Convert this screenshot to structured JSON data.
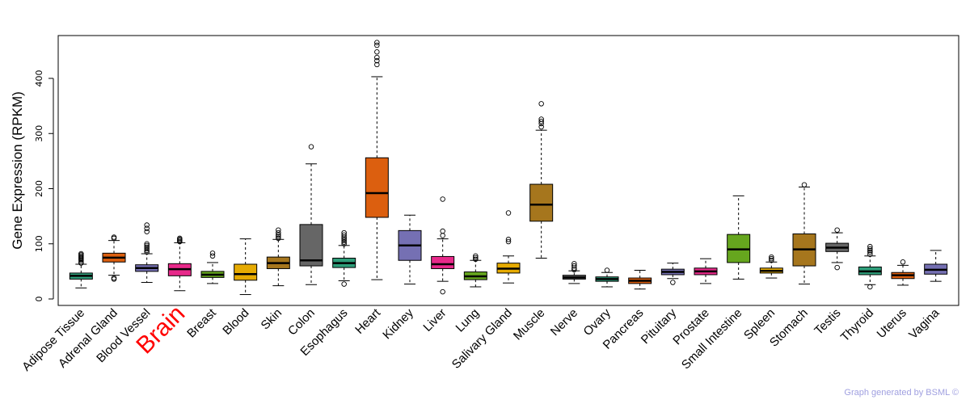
{
  "chart_data": {
    "type": "boxplot",
    "title": "",
    "xlabel": "",
    "ylabel": "Gene Expression (RPKM)",
    "ylim": [
      0,
      465
    ],
    "yticks": [
      0,
      100,
      200,
      300,
      400
    ],
    "highlight": "Brain",
    "footer": "Graph generated by BSML ©",
    "categories": [
      {
        "name": "Adipose Tissue",
        "color": "#2e9e7a",
        "whisker_low": 20,
        "q1": 36,
        "median": 42,
        "q3": 47,
        "whisker_high": 63,
        "outliers": [
          65,
          67,
          70,
          72,
          74,
          76,
          78,
          80,
          82
        ]
      },
      {
        "name": "Adrenal Gland",
        "color": "#dc5f0f",
        "whisker_low": 43,
        "q1": 67,
        "median": 75,
        "q3": 83,
        "whisker_high": 106,
        "outliers": [
          36,
          38,
          110,
          112
        ]
      },
      {
        "name": "Blood Vessel",
        "color": "#7570b3",
        "whisker_low": 30,
        "q1": 50,
        "median": 56,
        "q3": 62,
        "whisker_high": 82,
        "outliers": [
          85,
          88,
          91,
          94,
          97,
          100,
          122,
          128,
          134
        ]
      },
      {
        "name": "Brain",
        "color": "#e7298a",
        "whisker_low": 15,
        "q1": 42,
        "median": 54,
        "q3": 64,
        "whisker_high": 102,
        "outliers": [
          104,
          106,
          108,
          110
        ]
      },
      {
        "name": "Breast",
        "color": "#66a61e",
        "whisker_low": 28,
        "q1": 39,
        "median": 44,
        "q3": 50,
        "whisker_high": 66,
        "outliers": [
          78,
          83
        ]
      },
      {
        "name": "Blood",
        "color": "#e6ab02",
        "whisker_low": 8,
        "q1": 34,
        "median": 45,
        "q3": 63,
        "whisker_high": 109,
        "outliers": []
      },
      {
        "name": "Skin",
        "color": "#a6761d",
        "whisker_low": 24,
        "q1": 55,
        "median": 65,
        "q3": 76,
        "whisker_high": 108,
        "outliers": [
          110,
          113,
          116,
          120,
          125
        ]
      },
      {
        "name": "Colon",
        "color": "#666666",
        "whisker_low": 26,
        "q1": 60,
        "median": 70,
        "q3": 135,
        "whisker_high": 245,
        "outliers": [
          276
        ]
      },
      {
        "name": "Esophagus",
        "color": "#2e9e7a",
        "whisker_low": 33,
        "q1": 57,
        "median": 65,
        "q3": 74,
        "whisker_high": 97,
        "outliers": [
          27,
          100,
          103,
          106,
          109,
          112,
          116,
          120
        ]
      },
      {
        "name": "Heart",
        "color": "#dc5f0f",
        "whisker_low": 35,
        "q1": 148,
        "median": 192,
        "q3": 256,
        "whisker_high": 403,
        "outliers": [
          425,
          432,
          438,
          448,
          460,
          465
        ]
      },
      {
        "name": "Kidney",
        "color": "#7570b3",
        "whisker_low": 27,
        "q1": 70,
        "median": 97,
        "q3": 124,
        "whisker_high": 152,
        "outliers": []
      },
      {
        "name": "Liver",
        "color": "#e7298a",
        "whisker_low": 32,
        "q1": 55,
        "median": 63,
        "q3": 77,
        "whisker_high": 109,
        "outliers": [
          13,
          115,
          123,
          181
        ]
      },
      {
        "name": "Lung",
        "color": "#66a61e",
        "whisker_low": 22,
        "q1": 35,
        "median": 41,
        "q3": 49,
        "whisker_high": 70,
        "outliers": [
          72,
          75,
          78
        ]
      },
      {
        "name": "Salivary Gland",
        "color": "#e6ab02",
        "whisker_low": 29,
        "q1": 47,
        "median": 55,
        "q3": 65,
        "whisker_high": 78,
        "outliers": [
          104,
          108,
          156
        ]
      },
      {
        "name": "Muscle",
        "color": "#a6761d",
        "whisker_low": 74,
        "q1": 141,
        "median": 171,
        "q3": 208,
        "whisker_high": 306,
        "outliers": [
          312,
          318,
          322,
          326,
          354
        ]
      },
      {
        "name": "Nerve",
        "color": "#666666",
        "whisker_low": 28,
        "q1": 36,
        "median": 39,
        "q3": 43,
        "whisker_high": 51,
        "outliers": [
          53,
          56,
          60,
          64
        ]
      },
      {
        "name": "Ovary",
        "color": "#2e9e7a",
        "whisker_low": 22,
        "q1": 32,
        "median": 36,
        "q3": 40,
        "whisker_high": 48,
        "outliers": [
          52
        ]
      },
      {
        "name": "Pancreas",
        "color": "#dc5f0f",
        "whisker_low": 18,
        "q1": 28,
        "median": 33,
        "q3": 38,
        "whisker_high": 52,
        "outliers": []
      },
      {
        "name": "Pituitary",
        "color": "#7570b3",
        "whisker_low": 37,
        "q1": 44,
        "median": 49,
        "q3": 54,
        "whisker_high": 65,
        "outliers": [
          30
        ]
      },
      {
        "name": "Prostate",
        "color": "#e7298a",
        "whisker_low": 28,
        "q1": 44,
        "median": 50,
        "q3": 56,
        "whisker_high": 73,
        "outliers": []
      },
      {
        "name": "Small Intestine",
        "color": "#66a61e",
        "whisker_low": 36,
        "q1": 66,
        "median": 90,
        "q3": 117,
        "whisker_high": 187,
        "outliers": []
      },
      {
        "name": "Spleen",
        "color": "#e6ab02",
        "whisker_low": 38,
        "q1": 47,
        "median": 51,
        "q3": 56,
        "whisker_high": 67,
        "outliers": [
          70,
          73,
          76
        ]
      },
      {
        "name": "Stomach",
        "color": "#a6761d",
        "whisker_low": 27,
        "q1": 60,
        "median": 90,
        "q3": 118,
        "whisker_high": 203,
        "outliers": [
          207
        ]
      },
      {
        "name": "Testis",
        "color": "#666666",
        "whisker_low": 66,
        "q1": 86,
        "median": 93,
        "q3": 101,
        "whisker_high": 120,
        "outliers": [
          57,
          125
        ]
      },
      {
        "name": "Thyroid",
        "color": "#2e9e7a",
        "whisker_low": 26,
        "q1": 44,
        "median": 50,
        "q3": 58,
        "whisker_high": 78,
        "outliers": [
          22,
          81,
          85,
          88,
          91,
          95
        ]
      },
      {
        "name": "Uterus",
        "color": "#dc5f0f",
        "whisker_low": 25,
        "q1": 37,
        "median": 43,
        "q3": 48,
        "whisker_high": 61,
        "outliers": [
          67
        ]
      },
      {
        "name": "Vagina",
        "color": "#7570b3",
        "whisker_low": 32,
        "q1": 45,
        "median": 53,
        "q3": 63,
        "whisker_high": 88,
        "outliers": []
      }
    ]
  }
}
